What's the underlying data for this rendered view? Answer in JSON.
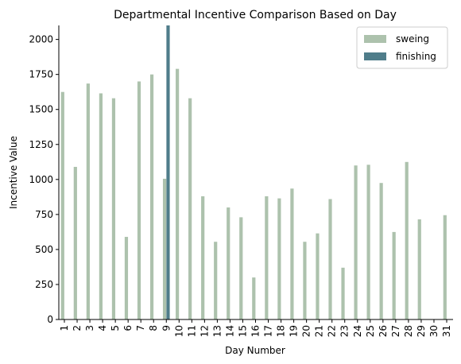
{
  "chart_data": {
    "type": "bar",
    "title": "Departmental Incentive Comparison Based on Day",
    "xlabel": "Day Number",
    "ylabel": "Incentive Value",
    "categories": [
      "1",
      "2",
      "3",
      "4",
      "5",
      "6",
      "7",
      "8",
      "9",
      "10",
      "11",
      "12",
      "13",
      "14",
      "15",
      "16",
      "17",
      "18",
      "19",
      "20",
      "21",
      "22",
      "23",
      "24",
      "25",
      "26",
      "27",
      "28",
      "29",
      "30",
      "31"
    ],
    "ylim": [
      0,
      2100
    ],
    "yticks": [
      0,
      250,
      500,
      750,
      1000,
      1250,
      1500,
      1750,
      2000
    ],
    "grid": false,
    "legend_position": "top-right",
    "series": [
      {
        "name": "sweing",
        "color": "#adc2ad",
        "values": [
          1625,
          1090,
          1685,
          1615,
          1580,
          590,
          1700,
          1750,
          1005,
          1790,
          1580,
          880,
          555,
          800,
          730,
          300,
          880,
          865,
          935,
          555,
          615,
          860,
          370,
          1100,
          1105,
          975,
          625,
          1125,
          715,
          null,
          745
        ]
      },
      {
        "name": "finishing",
        "color": "#4f7d8a",
        "values": [
          null,
          null,
          null,
          null,
          null,
          null,
          null,
          null,
          2100,
          null,
          null,
          null,
          null,
          null,
          null,
          null,
          null,
          null,
          null,
          null,
          null,
          null,
          null,
          null,
          null,
          null,
          null,
          null,
          null,
          null,
          null
        ]
      }
    ]
  }
}
